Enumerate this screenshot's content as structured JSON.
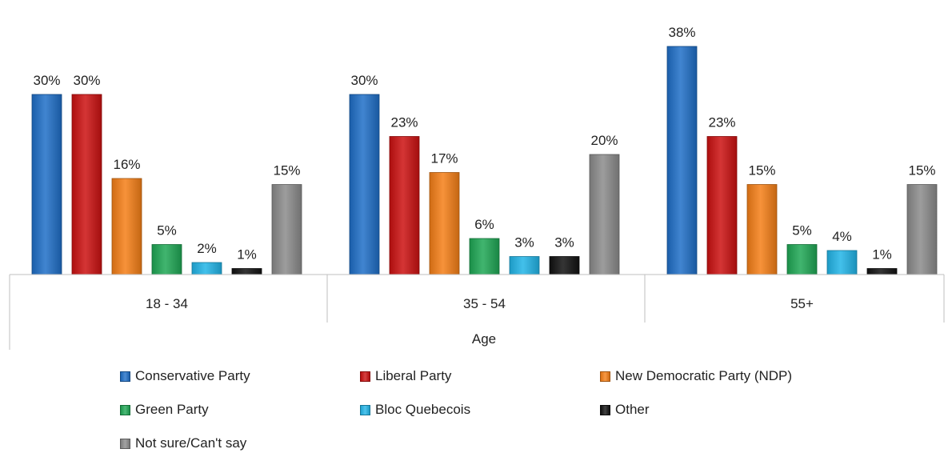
{
  "chart_data": {
    "type": "bar",
    "xlabel": "Age",
    "ylabel": "",
    "ylim": [
      0,
      40
    ],
    "grid": false,
    "legend_position": "bottom",
    "categories": [
      "18 - 34",
      "35 - 54",
      "55+"
    ],
    "series": [
      {
        "name": "Conservative Party",
        "color": "#1f6fc8",
        "values": [
          30,
          30,
          38
        ],
        "labels": [
          "30%",
          "30%",
          "38%"
        ]
      },
      {
        "name": "Liberal Party",
        "color": "#cc1111",
        "values": [
          30,
          23,
          23
        ],
        "labels": [
          "30%",
          "23%",
          "23%"
        ]
      },
      {
        "name": "New Democratic Party (NDP)",
        "color": "#f57f17",
        "values": [
          16,
          17,
          15
        ],
        "labels": [
          "16%",
          "17%",
          "15%"
        ]
      },
      {
        "name": "Green Party",
        "color": "#1fa855",
        "values": [
          5,
          6,
          5
        ],
        "labels": [
          "5%",
          "6%",
          "5%"
        ]
      },
      {
        "name": "Bloc Quebecois",
        "color": "#22b5e8",
        "values": [
          2,
          3,
          4
        ],
        "labels": [
          "2%",
          "3%",
          "4%"
        ]
      },
      {
        "name": "Other",
        "color": "#111111",
        "values": [
          1,
          3,
          1
        ],
        "labels": [
          "1%",
          "3%",
          "1%"
        ]
      },
      {
        "name": "Not sure/Can't say",
        "color": "#8c8c8c",
        "values": [
          15,
          20,
          15
        ],
        "labels": [
          "15%",
          "20%",
          "15%"
        ]
      }
    ]
  }
}
